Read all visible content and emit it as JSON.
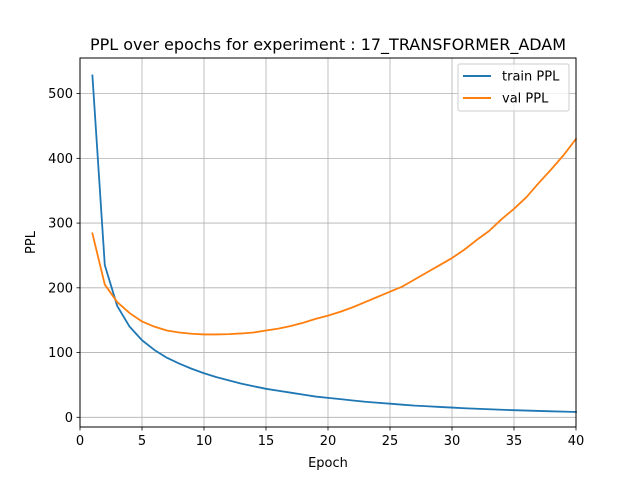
{
  "chart_data": {
    "type": "line",
    "title": "PPL over epochs for experiment : 17_TRANSFORMER_ADAM",
    "xlabel": "Epoch",
    "ylabel": "PPL",
    "xlim": [
      0,
      40
    ],
    "ylim": [
      -15,
      555
    ],
    "xticks": [
      0,
      5,
      10,
      15,
      20,
      25,
      30,
      35,
      40
    ],
    "yticks": [
      0,
      100,
      200,
      300,
      400,
      500
    ],
    "grid": true,
    "legend_position": "top-right",
    "x": [
      1,
      2,
      3,
      4,
      5,
      6,
      7,
      8,
      9,
      10,
      11,
      12,
      13,
      14,
      15,
      16,
      17,
      18,
      19,
      20,
      21,
      22,
      23,
      24,
      25,
      26,
      27,
      28,
      29,
      30,
      31,
      32,
      33,
      34,
      35,
      36,
      37,
      38,
      39,
      40
    ],
    "series": [
      {
        "name": "train PPL",
        "color": "#1f77b4",
        "values": [
          528,
          235,
          172,
          140,
          119,
          104,
          92,
          83,
          75,
          68,
          62,
          57,
          52,
          48,
          44,
          41,
          38,
          35,
          32,
          30,
          28,
          26,
          24,
          22.5,
          21,
          19.5,
          18,
          17,
          16,
          15,
          14,
          13.2,
          12.4,
          11.6,
          11,
          10.4,
          9.8,
          9.2,
          8.7,
          8.2
        ]
      },
      {
        "name": "val PPL",
        "color": "#ff7f0e",
        "values": [
          284,
          205,
          178,
          161,
          148,
          140,
          134,
          131,
          129,
          128,
          128,
          128.5,
          129.5,
          131,
          134,
          137,
          141,
          146,
          152,
          157,
          163,
          170,
          178,
          186,
          194,
          202,
          213,
          224,
          235,
          246,
          259,
          274,
          288,
          306,
          322,
          340,
          362,
          383,
          405,
          430
        ]
      }
    ]
  }
}
